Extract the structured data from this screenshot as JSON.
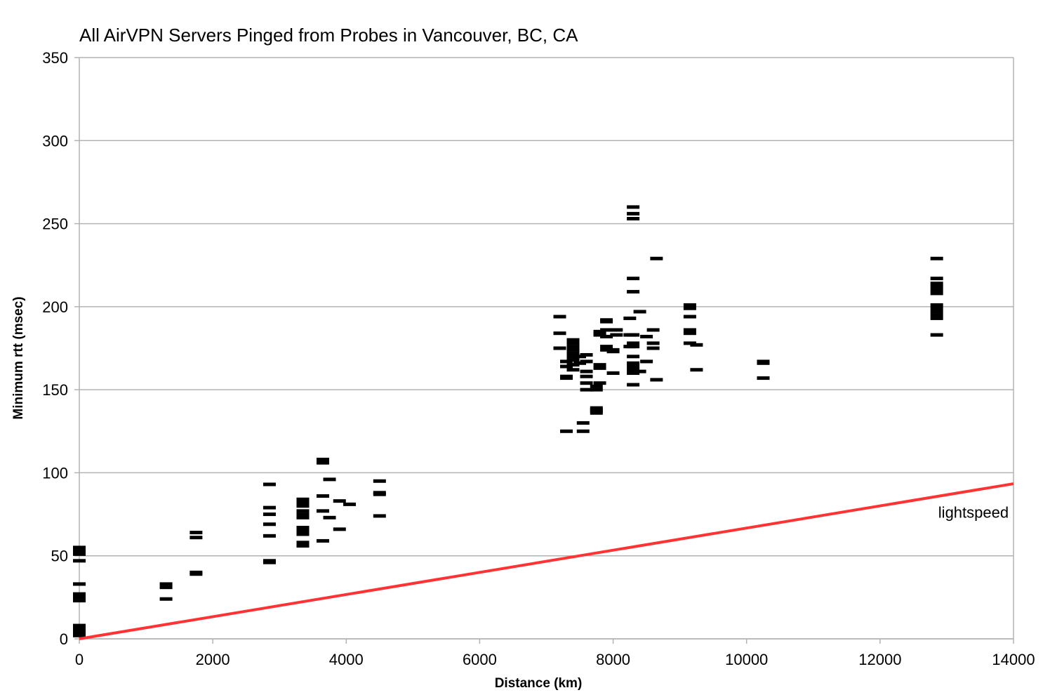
{
  "chart_data": {
    "type": "scatter",
    "title": "All AirVPN Servers Pinged from Probes in Vancouver, BC, CA",
    "xlabel": "Distance (km)",
    "ylabel": "Minimum rtt (msec)",
    "xlim": [
      0,
      14000
    ],
    "ylim": [
      0,
      350
    ],
    "x_ticks": [
      0,
      2000,
      4000,
      6000,
      8000,
      10000,
      12000,
      14000
    ],
    "y_ticks": [
      0,
      50,
      100,
      150,
      200,
      250,
      300,
      350
    ],
    "x_tick_labels": [
      "0",
      "2000",
      "4000",
      "6000",
      "8000",
      "10000",
      "12000",
      "14000"
    ],
    "y_tick_labels": [
      "0",
      "50",
      "100",
      "150",
      "200",
      "250",
      "300",
      "350"
    ],
    "grid": "horizontal",
    "legend": "none",
    "marker": "dash",
    "series": [
      {
        "color": "#000000",
        "points": [
          [
            0,
            2
          ],
          [
            0,
            3
          ],
          [
            0,
            4
          ],
          [
            0,
            6
          ],
          [
            0,
            8
          ],
          [
            0,
            23
          ],
          [
            0,
            25
          ],
          [
            0,
            26
          ],
          [
            0,
            27
          ],
          [
            0,
            33
          ],
          [
            0,
            47
          ],
          [
            0,
            51
          ],
          [
            0,
            53
          ],
          [
            0,
            55
          ],
          [
            1300,
            24
          ],
          [
            1300,
            31
          ],
          [
            1300,
            33
          ],
          [
            1750,
            39
          ],
          [
            1750,
            40
          ],
          [
            1750,
            61
          ],
          [
            1750,
            64
          ],
          [
            2850,
            46
          ],
          [
            2850,
            47
          ],
          [
            2850,
            62
          ],
          [
            2850,
            69
          ],
          [
            2850,
            75
          ],
          [
            2850,
            79
          ],
          [
            2850,
            93
          ],
          [
            3350,
            56
          ],
          [
            3350,
            58
          ],
          [
            3350,
            63
          ],
          [
            3350,
            65
          ],
          [
            3350,
            67
          ],
          [
            3350,
            73
          ],
          [
            3350,
            75
          ],
          [
            3350,
            77
          ],
          [
            3350,
            80
          ],
          [
            3350,
            82
          ],
          [
            3350,
            84
          ],
          [
            3650,
            59
          ],
          [
            3650,
            77
          ],
          [
            3650,
            86
          ],
          [
            3650,
            106
          ],
          [
            3650,
            108
          ],
          [
            3750,
            73
          ],
          [
            3750,
            96
          ],
          [
            3900,
            66
          ],
          [
            3900,
            83
          ],
          [
            4050,
            81
          ],
          [
            4500,
            74
          ],
          [
            4500,
            87
          ],
          [
            4500,
            88
          ],
          [
            4500,
            95
          ],
          [
            7200,
            175
          ],
          [
            7200,
            184
          ],
          [
            7200,
            194
          ],
          [
            7300,
            125
          ],
          [
            7300,
            157
          ],
          [
            7300,
            158
          ],
          [
            7300,
            164
          ],
          [
            7300,
            167
          ],
          [
            7400,
            162
          ],
          [
            7400,
            165
          ],
          [
            7400,
            168
          ],
          [
            7400,
            170
          ],
          [
            7400,
            172
          ],
          [
            7400,
            174
          ],
          [
            7400,
            176
          ],
          [
            7400,
            178
          ],
          [
            7400,
            180
          ],
          [
            7500,
            166
          ],
          [
            7500,
            170
          ],
          [
            7550,
            130
          ],
          [
            7550,
            125
          ],
          [
            7600,
            150
          ],
          [
            7600,
            154
          ],
          [
            7600,
            158
          ],
          [
            7600,
            161
          ],
          [
            7600,
            167
          ],
          [
            7600,
            171
          ],
          [
            7750,
            136
          ],
          [
            7750,
            137
          ],
          [
            7750,
            138
          ],
          [
            7750,
            139
          ],
          [
            7750,
            150
          ],
          [
            7750,
            152
          ],
          [
            7800,
            154
          ],
          [
            7800,
            163
          ],
          [
            7800,
            165
          ],
          [
            7800,
            183
          ],
          [
            7800,
            184
          ],
          [
            7800,
            185
          ],
          [
            7900,
            174
          ],
          [
            7900,
            176
          ],
          [
            7900,
            182
          ],
          [
            7900,
            186
          ],
          [
            7900,
            191
          ],
          [
            7900,
            192
          ],
          [
            8000,
            160
          ],
          [
            8000,
            173
          ],
          [
            8000,
            174
          ],
          [
            8050,
            183
          ],
          [
            8050,
            186
          ],
          [
            8250,
            176
          ],
          [
            8250,
            183
          ],
          [
            8250,
            193
          ],
          [
            8300,
            153
          ],
          [
            8300,
            160
          ],
          [
            8300,
            162
          ],
          [
            8300,
            164
          ],
          [
            8300,
            166
          ],
          [
            8300,
            170
          ],
          [
            8300,
            176
          ],
          [
            8300,
            178
          ],
          [
            8300,
            183
          ],
          [
            8300,
            209
          ],
          [
            8300,
            217
          ],
          [
            8300,
            253
          ],
          [
            8300,
            256
          ],
          [
            8300,
            260
          ],
          [
            8400,
            161
          ],
          [
            8400,
            197
          ],
          [
            8500,
            167
          ],
          [
            8500,
            182
          ],
          [
            8600,
            175
          ],
          [
            8600,
            178
          ],
          [
            8600,
            186
          ],
          [
            8650,
            156
          ],
          [
            8650,
            229
          ],
          [
            9150,
            178
          ],
          [
            9150,
            184
          ],
          [
            9150,
            186
          ],
          [
            9150,
            194
          ],
          [
            9150,
            199
          ],
          [
            9150,
            201
          ],
          [
            9250,
            162
          ],
          [
            9250,
            177
          ],
          [
            10250,
            157
          ],
          [
            10250,
            166
          ],
          [
            10250,
            167
          ],
          [
            12850,
            183
          ],
          [
            12850,
            193
          ],
          [
            12850,
            195
          ],
          [
            12850,
            197
          ],
          [
            12850,
            199
          ],
          [
            12850,
            201
          ],
          [
            12850,
            208
          ],
          [
            12850,
            210
          ],
          [
            12850,
            212
          ],
          [
            12850,
            214
          ],
          [
            12850,
            217
          ],
          [
            12850,
            229
          ]
        ]
      },
      {
        "name": "lightspeed",
        "type": "line",
        "color": "#ff3333",
        "points": [
          [
            0,
            0
          ],
          [
            14000,
            93.4
          ]
        ]
      }
    ],
    "annotations": [
      {
        "text": "lightspeed",
        "x": 13400,
        "y": 73
      }
    ]
  }
}
